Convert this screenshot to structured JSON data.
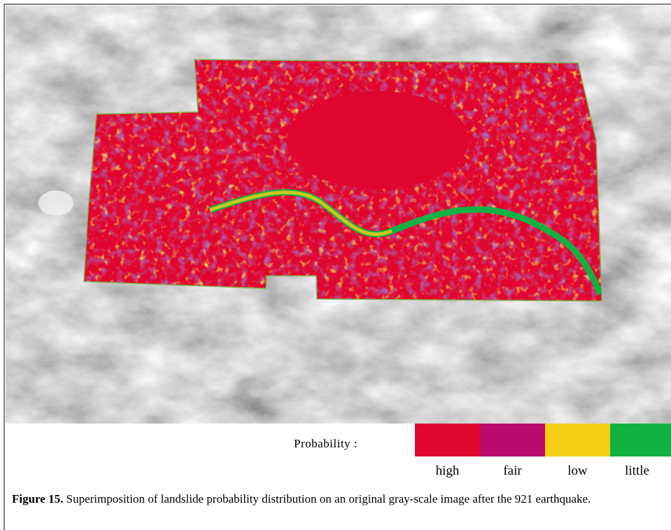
{
  "figure": {
    "legend": {
      "title": "Probability :",
      "items": [
        {
          "label": "high",
          "color": "#e0062f"
        },
        {
          "label": "fair",
          "color": "#bb0a6e"
        },
        {
          "label": "low",
          "color": "#f5cf16"
        },
        {
          "label": "little",
          "color": "#12b144"
        }
      ]
    },
    "caption": {
      "label": "Figure 15.",
      "text": "Superimposition of landslide probability distribution on an original gray-scale image after the 921 earthquake."
    }
  }
}
